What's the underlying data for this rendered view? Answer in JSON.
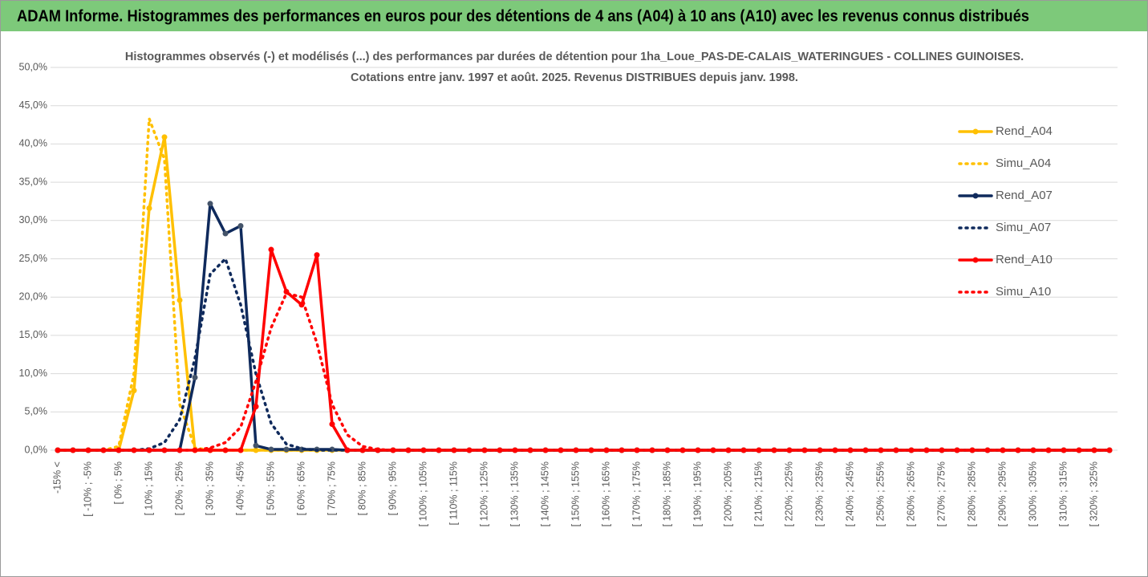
{
  "header": {
    "title": "ADAM Informe. Histogrammes des performances en euros pour des détentions de 4 ans (A04) à 10 ans (A10) avec les revenus connus distribués"
  },
  "chart_data": {
    "type": "line",
    "title": "Histogrammes observés (-) et modélisés (...) des performances par durées de détention pour 1ha_Loue_PAS-DE-CALAIS_WATERINGUES - COLLINES GUINOISES.",
    "subtitle": "Cotations entre janv. 1997 et août. 2025. Revenus DISTRIBUES depuis janv. 1998.",
    "categories": [
      "-15% <",
      null,
      "[ -10% ; -5%",
      null,
      "[ 0% ; 5%",
      null,
      "[ 10% ; 15%",
      null,
      "[ 20% ; 25%",
      null,
      "[ 30% ; 35%",
      null,
      "[ 40% ; 45%",
      null,
      "[ 50% ; 55%",
      null,
      "[ 60% ; 65%",
      null,
      "[ 70% ; 75%",
      null,
      "[ 80% ; 85%",
      null,
      "[ 90% ; 95%",
      null,
      "[ 100% ; 105%",
      null,
      "[ 110% ; 115%",
      null,
      "[ 120% ; 125%",
      null,
      "[ 130% ; 135%",
      null,
      "[ 140% ; 145%",
      null,
      "[ 150% ; 155%",
      null,
      "[ 160% ; 165%",
      null,
      "[ 170% ; 175%",
      null,
      "[ 180% ; 185%",
      null,
      "[ 190% ; 195%",
      null,
      "[ 200% ; 205%",
      null,
      "[ 210% ; 215%",
      null,
      "[ 220% ; 225%",
      null,
      "[ 230% ; 235%",
      null,
      "[ 240% ; 245%",
      null,
      "[ 250% ; 255%",
      null,
      "[ 260% ; 265%",
      null,
      "[ 270% ; 275%",
      null,
      "[ 280% ; 285%",
      null,
      "[ 290% ; 295%",
      null,
      "[ 300% ; 305%",
      null,
      "[ 310% ; 315%",
      null,
      "[ 320% ; 325%",
      null
    ],
    "series": [
      {
        "name": "Rend_A04",
        "color": "#ffc000",
        "style": "solid",
        "values": [
          0,
          0,
          0,
          0,
          0,
          7.8,
          31.6,
          40.9,
          19.6,
          0,
          0,
          0,
          0,
          0,
          0,
          0,
          0,
          0,
          0,
          0,
          0,
          0,
          0,
          0,
          0,
          0,
          0,
          0,
          0,
          0,
          0,
          0,
          0,
          0,
          0,
          0,
          0,
          0,
          0,
          0,
          0,
          0,
          0,
          0,
          0,
          0,
          0,
          0,
          0,
          0,
          0,
          0,
          0,
          0,
          0,
          0,
          0,
          0,
          0,
          0,
          0,
          0,
          0,
          0,
          0,
          0,
          0,
          0,
          0,
          0
        ]
      },
      {
        "name": "Simu_A04",
        "color": "#ffc000",
        "style": "dotted",
        "values": [
          0,
          0,
          0,
          0,
          0.5,
          10,
          43.3,
          38,
          6,
          0.3,
          0,
          0,
          0,
          0,
          0,
          0,
          0,
          0,
          0,
          0,
          0,
          0,
          0,
          0,
          0,
          0,
          0,
          0,
          0,
          0,
          0,
          0,
          0,
          0,
          0,
          0,
          0,
          0,
          0,
          0,
          0,
          0,
          0,
          0,
          0,
          0,
          0,
          0,
          0,
          0,
          0,
          0,
          0,
          0,
          0,
          0,
          0,
          0,
          0,
          0,
          0,
          0,
          0,
          0,
          0,
          0,
          0,
          0,
          0,
          0
        ]
      },
      {
        "name": "Rend_A07",
        "color": "#0f2a5c",
        "style": "solid",
        "values": [
          0,
          0,
          0,
          0,
          0,
          0,
          0,
          0,
          0,
          9.5,
          32.2,
          28.3,
          29.3,
          0.6,
          0.1,
          0.1,
          0.1,
          0.1,
          0.1,
          0,
          0,
          0,
          0,
          0,
          0,
          0,
          0,
          0,
          0,
          0,
          0,
          0,
          0,
          0,
          0,
          0,
          0,
          0,
          0,
          0,
          0,
          0,
          0,
          0,
          0,
          0,
          0,
          0,
          0,
          0,
          0,
          0,
          0,
          0,
          0,
          0,
          0,
          0,
          0,
          0,
          0,
          0,
          0,
          0,
          0,
          0,
          0,
          0,
          0,
          0
        ]
      },
      {
        "name": "Simu_A07",
        "color": "#0f2a5c",
        "style": "dotted",
        "values": [
          0,
          0,
          0,
          0,
          0,
          0,
          0.2,
          1,
          4,
          12,
          23,
          25,
          19,
          10,
          3.5,
          0.8,
          0.2,
          0,
          0,
          0,
          0,
          0,
          0,
          0,
          0,
          0,
          0,
          0,
          0,
          0,
          0,
          0,
          0,
          0,
          0,
          0,
          0,
          0,
          0,
          0,
          0,
          0,
          0,
          0,
          0,
          0,
          0,
          0,
          0,
          0,
          0,
          0,
          0,
          0,
          0,
          0,
          0,
          0,
          0,
          0,
          0,
          0,
          0,
          0,
          0,
          0,
          0,
          0,
          0,
          0
        ]
      },
      {
        "name": "Rend_A10",
        "color": "#ff0000",
        "style": "solid",
        "values": [
          0,
          0,
          0,
          0,
          0,
          0,
          0,
          0,
          0,
          0,
          0,
          0,
          0,
          5.7,
          26.2,
          20.7,
          19,
          25.5,
          3.4,
          0,
          0,
          0,
          0,
          0,
          0,
          0,
          0,
          0,
          0,
          0,
          0,
          0,
          0,
          0,
          0,
          0,
          0,
          0,
          0,
          0,
          0,
          0,
          0,
          0,
          0,
          0,
          0,
          0,
          0,
          0,
          0,
          0,
          0,
          0,
          0,
          0,
          0,
          0,
          0,
          0,
          0,
          0,
          0,
          0,
          0,
          0,
          0,
          0,
          0,
          0
        ]
      },
      {
        "name": "Simu_A10",
        "color": "#ff0000",
        "style": "dotted",
        "values": [
          0,
          0,
          0,
          0,
          0,
          0,
          0,
          0,
          0,
          0,
          0.3,
          1,
          3,
          9,
          16,
          20.5,
          20,
          14,
          6,
          2,
          0.5,
          0.1,
          0,
          0,
          0,
          0,
          0,
          0,
          0,
          0,
          0,
          0,
          0,
          0,
          0,
          0,
          0,
          0,
          0,
          0,
          0,
          0,
          0,
          0,
          0,
          0,
          0,
          0,
          0,
          0,
          0,
          0,
          0,
          0,
          0,
          0,
          0,
          0,
          0,
          0,
          0,
          0,
          0,
          0,
          0,
          0,
          0,
          0,
          0,
          0
        ]
      }
    ],
    "ylim": [
      0,
      50
    ],
    "yticks": [
      {
        "value": 0,
        "label": "0,0%"
      },
      {
        "value": 5,
        "label": "5,0%"
      },
      {
        "value": 10,
        "label": "10,0%"
      },
      {
        "value": 15,
        "label": "15,0%"
      },
      {
        "value": 20,
        "label": "20,0%"
      },
      {
        "value": 25,
        "label": "25,0%"
      },
      {
        "value": 30,
        "label": "30,0%"
      },
      {
        "value": 35,
        "label": "35,0%"
      },
      {
        "value": 40,
        "label": "40,0%"
      },
      {
        "value": 45,
        "label": "45,0%"
      },
      {
        "value": 50,
        "label": "50,0%"
      }
    ],
    "grid": true,
    "legend": "right"
  }
}
